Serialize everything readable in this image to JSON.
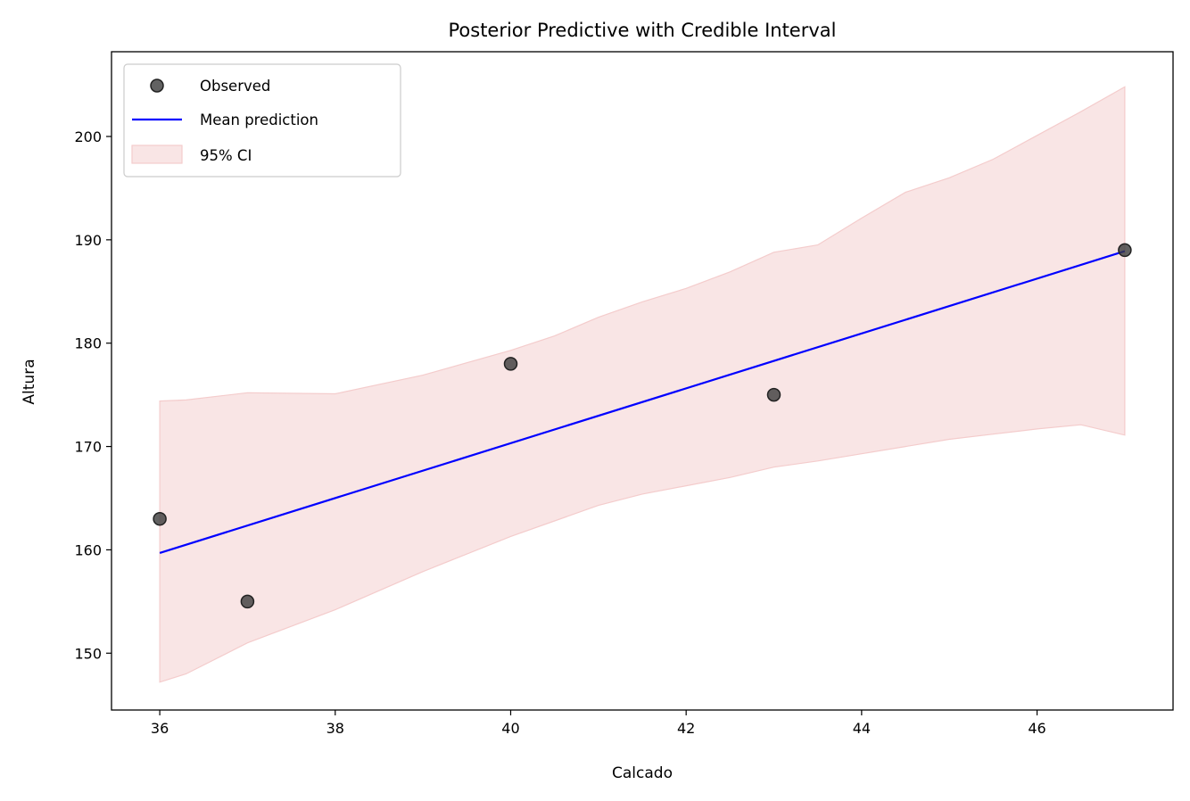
{
  "chart_data": {
    "type": "scatter",
    "title": "Posterior Predictive with Credible Interval",
    "xlabel": "Calcado",
    "ylabel": "Altura",
    "xlim": [
      35.45,
      47.55
    ],
    "ylim": [
      144.5,
      208.2
    ],
    "xticks": [
      36,
      38,
      40,
      42,
      44,
      46
    ],
    "yticks": [
      150,
      160,
      170,
      180,
      190,
      200
    ],
    "grid": false,
    "legend_position": "top-left",
    "series": [
      {
        "name": "Observed",
        "kind": "scatter",
        "color": "#3b3b3b",
        "x": [
          36,
          37,
          40,
          43,
          47
        ],
        "y": [
          163,
          155,
          178,
          175,
          189
        ]
      },
      {
        "name": "Mean prediction",
        "kind": "line",
        "color": "#0000ff",
        "x": [
          36,
          47
        ],
        "y": [
          159.7,
          188.9
        ]
      },
      {
        "name": "95% CI",
        "kind": "band",
        "color": "#f4cccc",
        "x": [
          36,
          36.3,
          37,
          38,
          39,
          40,
          40.5,
          41,
          41.5,
          42,
          42.5,
          43,
          43.5,
          44,
          44.5,
          45,
          45.5,
          46,
          46.5,
          47
        ],
        "upper": [
          174.4,
          174.5,
          175.2,
          175.1,
          176.9,
          179.3,
          180.7,
          182.5,
          184.0,
          185.3,
          186.9,
          188.8,
          189.5,
          192.1,
          194.6,
          196.0,
          197.8,
          200.1,
          202.4,
          204.8
        ],
        "lower": [
          147.2,
          148.0,
          151.0,
          154.2,
          157.9,
          161.3,
          162.8,
          164.3,
          165.4,
          166.2,
          167.0,
          168.0,
          168.6,
          169.3,
          170.0,
          170.7,
          171.2,
          171.7,
          172.1,
          171.1
        ]
      }
    ]
  }
}
